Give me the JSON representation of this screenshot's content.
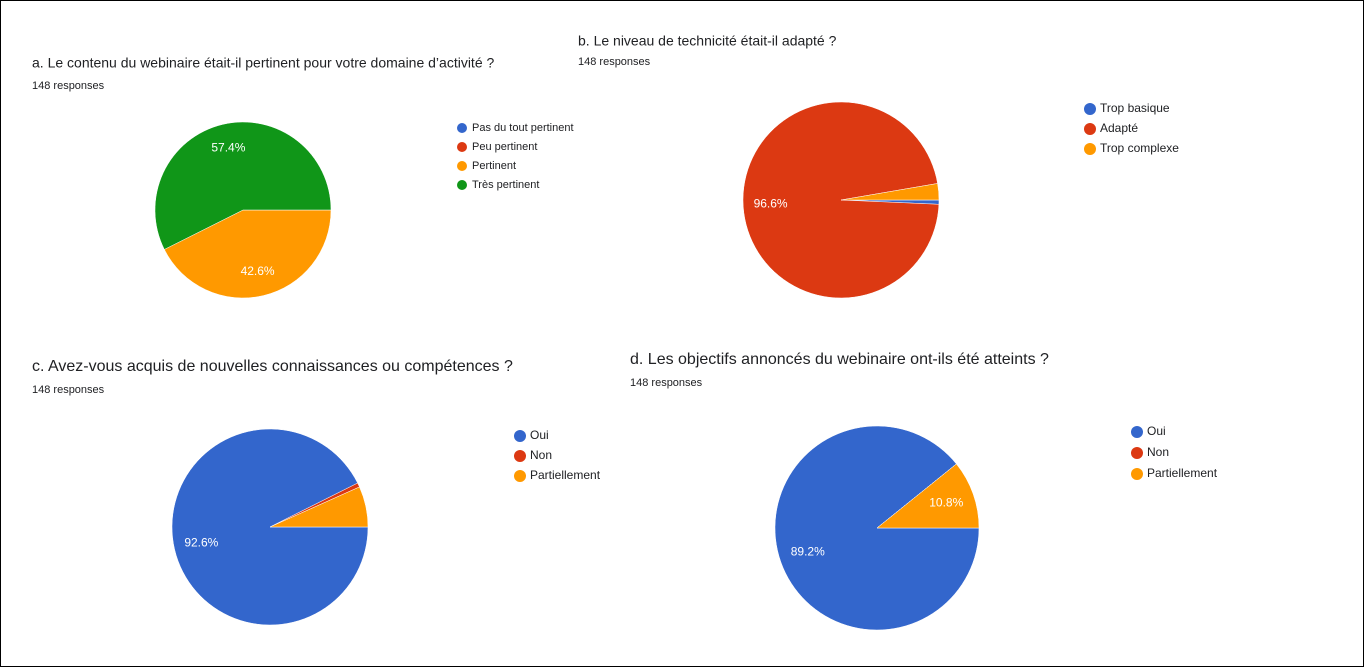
{
  "chart_data": [
    {
      "type": "pie",
      "title": "a. Le contenu du webinaire était-il pertinent pour votre domaine d’activité ?",
      "subtitle": "148 responses",
      "categories": [
        "Pas du tout pertinent",
        "Peu pertinent",
        "Pertinent",
        "Très pertinent"
      ],
      "values": [
        0,
        0,
        42.6,
        57.4
      ],
      "value_labels": [
        null,
        null,
        "42.6%",
        "57.4%"
      ],
      "colors": [
        "#3366cc",
        "#dc3912",
        "#ff9900",
        "#109618"
      ]
    },
    {
      "type": "pie",
      "title": "b. Le niveau de technicité était-il adapté ?",
      "subtitle": "148 responses",
      "categories": [
        "Trop basique",
        "Adapté",
        "Trop complexe"
      ],
      "values": [
        0.7,
        96.6,
        2.7
      ],
      "value_labels": [
        null,
        "96.6%",
        null
      ],
      "colors": [
        "#3366cc",
        "#dc3912",
        "#ff9900"
      ]
    },
    {
      "type": "pie",
      "title": "c. Avez-vous acquis de nouvelles connaissances ou compétences ?",
      "subtitle": "148 responses",
      "categories": [
        "Oui",
        "Non",
        "Partiellement"
      ],
      "values": [
        92.6,
        0.7,
        6.7
      ],
      "value_labels": [
        "92.6%",
        null,
        null
      ],
      "colors": [
        "#3366cc",
        "#dc3912",
        "#ff9900"
      ]
    },
    {
      "type": "pie",
      "title": "d. Les objectifs annoncés du webinaire ont-ils été atteints ?",
      "subtitle": "148 responses",
      "categories": [
        "Oui",
        "Non",
        "Partiellement"
      ],
      "values": [
        89.2,
        0,
        10.8
      ],
      "value_labels": [
        "89.2%",
        null,
        "10.8%"
      ],
      "colors": [
        "#3366cc",
        "#dc3912",
        "#ff9900"
      ]
    }
  ]
}
